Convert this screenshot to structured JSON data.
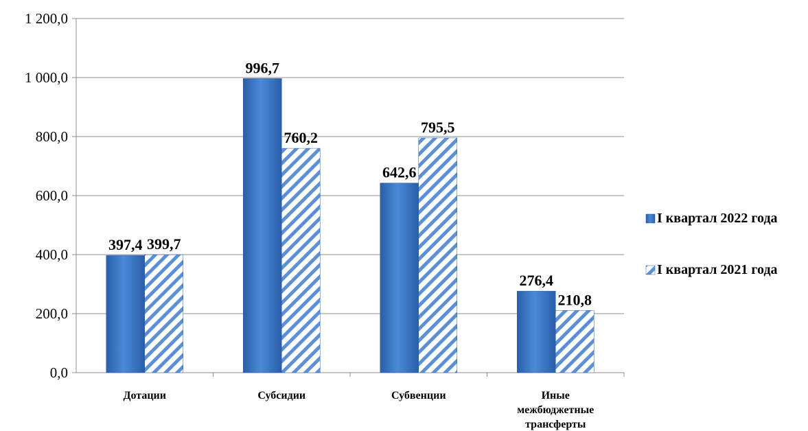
{
  "chart_data": {
    "type": "bar",
    "categories": [
      "Дотации",
      "Субсидии",
      "Субвенции",
      "Иные межбюджетные трансферты"
    ],
    "series": [
      {
        "name": "I квартал 2022 года",
        "values": [
          397.4,
          996.7,
          642.6,
          276.4
        ],
        "labels": [
          "397,4",
          "996,7",
          "642,6",
          "276,4"
        ],
        "color": "#2f6fbf",
        "pattern": "solid"
      },
      {
        "name": "I квартал 2021 года",
        "values": [
          399.7,
          760.2,
          795.5,
          210.8
        ],
        "labels": [
          "399,7",
          "760,2",
          "795,5",
          "210,8"
        ],
        "color": "#5b8fd6",
        "pattern": "diagonal-hatch"
      }
    ],
    "ylim": [
      0,
      1200
    ],
    "yticks": [
      "0,0",
      "200,0",
      "400,0",
      "600,0",
      "800,0",
      "1 000,0",
      "1 200,0"
    ],
    "grid": true,
    "legend_position": "right"
  }
}
